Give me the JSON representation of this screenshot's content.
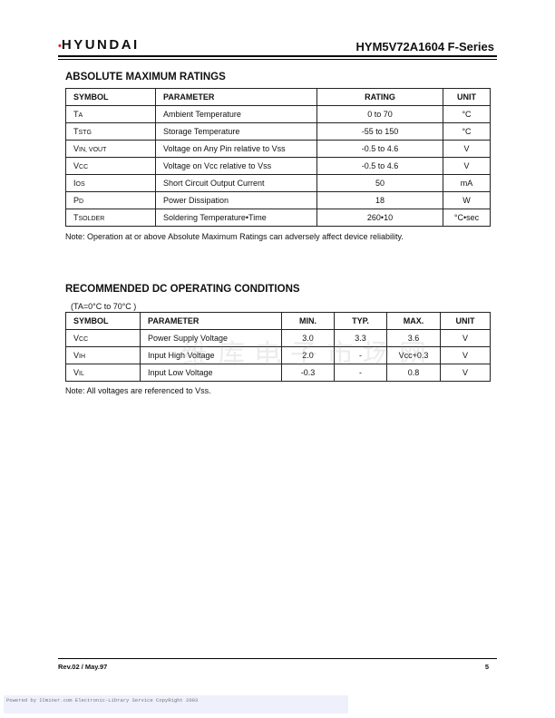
{
  "header": {
    "logo": "HYUNDAI",
    "series": "HYM5V72A1604 F-Series"
  },
  "abs_max": {
    "title": "ABSOLUTE MAXIMUM RATINGS",
    "columns": [
      "SYMBOL",
      "PARAMETER",
      "RATING",
      "UNIT"
    ],
    "rows": [
      {
        "sym": "T",
        "sub": "A",
        "param": "Ambient Temperature",
        "rating": "0 to 70",
        "unit": "°C"
      },
      {
        "sym": "T",
        "sub": "STG",
        "param": "Storage Temperature",
        "rating": "-55 to 150",
        "unit": "°C"
      },
      {
        "sym": "V",
        "sub": "IN, VOUT",
        "param": "Voltage on Any Pin relative to Vss",
        "rating": "-0.5 to 4.6",
        "unit": "V"
      },
      {
        "sym": "V",
        "sub": "CC",
        "param": "Voltage on Vcc relative to Vss",
        "rating": "-0.5 to 4.6",
        "unit": "V"
      },
      {
        "sym": "I",
        "sub": "OS",
        "param": "Short Circuit Output Current",
        "rating": "50",
        "unit": "mA"
      },
      {
        "sym": "P",
        "sub": "D",
        "param": "Power Dissipation",
        "rating": "18",
        "unit": "W"
      },
      {
        "sym": "T",
        "sub": "SOLDER",
        "param": "Soldering Temperature•Time",
        "rating": "260•10",
        "unit": "°C•sec"
      }
    ],
    "note": "Note: Operation at or above Absolute Maximum Ratings can adversely affect device reliability."
  },
  "dc_cond": {
    "title": "RECOMMENDED DC OPERATING CONDITIONS",
    "condition": "(TA=0°C  to 70°C )",
    "columns": [
      "SYMBOL",
      "PARAMETER",
      "MIN.",
      "TYP.",
      "MAX.",
      "UNIT"
    ],
    "rows": [
      {
        "sym": "V",
        "sub": "CC",
        "param": "Power Supply Voltage",
        "min": "3.0",
        "typ": "3.3",
        "max": "3.6",
        "unit": "V"
      },
      {
        "sym": "V",
        "sub": "IH",
        "param": "Input High Voltage",
        "min": "2.0",
        "typ": "-",
        "max": "Vcc+0.3",
        "unit": "V"
      },
      {
        "sym": "V",
        "sub": "IL",
        "param": "Input Low Voltage",
        "min": "-0.3",
        "typ": "-",
        "max": "0.8",
        "unit": "V"
      }
    ],
    "note": "Note: All voltages are referenced to Vss."
  },
  "watermark": "维库电子市场网",
  "footer": {
    "rev": "Rev.02 / May.97",
    "page": "5",
    "powered": "Powered by ICminer.com Electronic-Library Service CopyRight 2003"
  }
}
